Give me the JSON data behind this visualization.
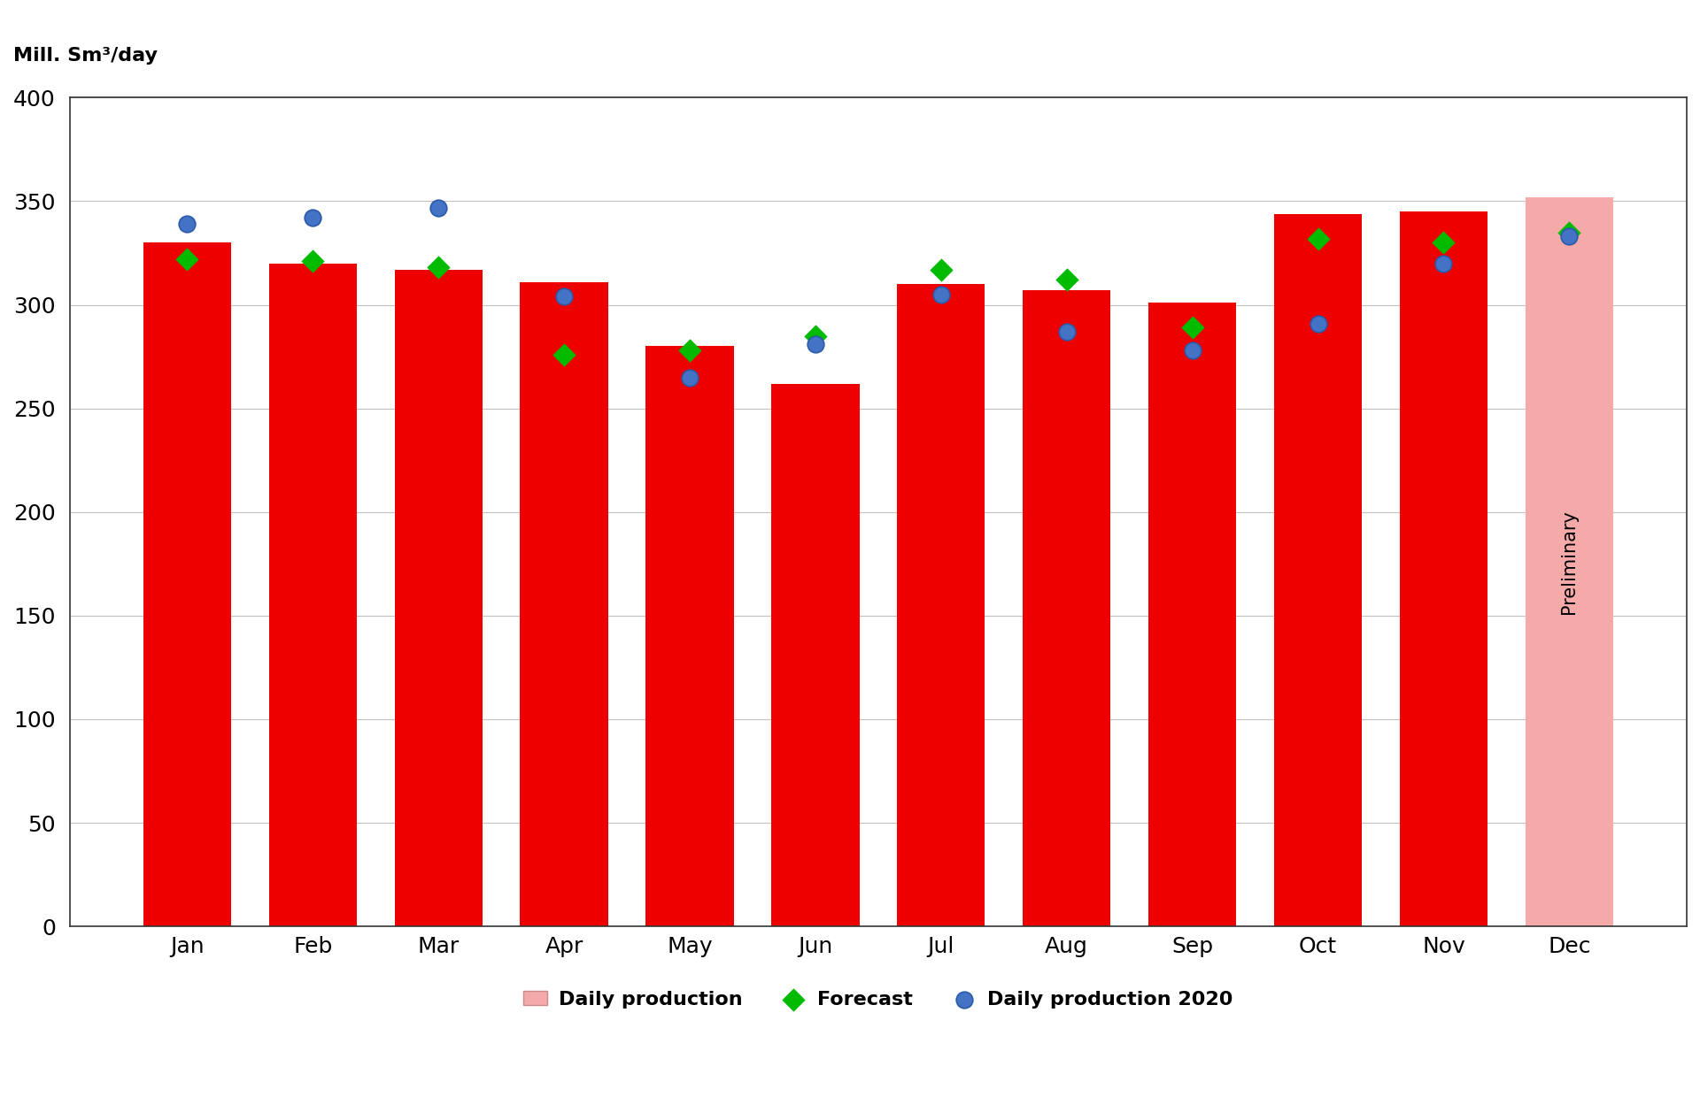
{
  "months": [
    "Jan",
    "Feb",
    "Mar",
    "Apr",
    "May",
    "Jun",
    "Jul",
    "Aug",
    "Sep",
    "Oct",
    "Nov",
    "Dec"
  ],
  "bar_values": [
    330,
    320,
    317,
    311,
    280,
    262,
    310,
    307,
    301,
    344,
    345,
    352
  ],
  "bar_colors_solid": "#ee0000",
  "bar_color_prelim": "#f5aaaa",
  "forecast": [
    322,
    321,
    318,
    276,
    278,
    285,
    317,
    312,
    289,
    332,
    330,
    335
  ],
  "prod_2020": [
    339,
    342,
    347,
    304,
    265,
    281,
    305,
    287,
    278,
    291,
    320,
    333
  ],
  "preliminary_index": 11,
  "ylabel": "Mill. Sm³/day",
  "ylim": [
    0,
    400
  ],
  "yticks": [
    0,
    50,
    100,
    150,
    200,
    250,
    300,
    350,
    400
  ],
  "forecast_color": "#00bb00",
  "prod2020_color": "#4472c4",
  "background_color": "#ffffff",
  "grid_color": "#c0c0c0",
  "tick_fontsize": 18,
  "label_fontsize": 16,
  "legend_fontsize": 16,
  "bar_width": 0.7
}
